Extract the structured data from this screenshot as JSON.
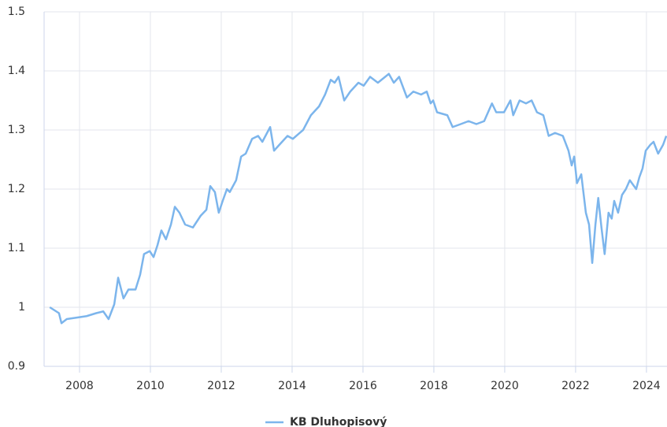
{
  "chart_data": {
    "type": "line",
    "series": [
      {
        "name": "KB Dluhopisový",
        "color": "#7cb5ec",
        "x": [
          2007.16,
          2007.42,
          2007.49,
          2007.64,
          2007.98,
          2008.2,
          2008.47,
          2008.67,
          2008.82,
          2008.98,
          2009.09,
          2009.24,
          2009.38,
          2009.58,
          2009.71,
          2009.82,
          2009.98,
          2010.09,
          2010.2,
          2010.31,
          2010.44,
          2010.58,
          2010.69,
          2010.82,
          2010.98,
          2011.2,
          2011.42,
          2011.58,
          2011.69,
          2011.82,
          2011.93,
          2012.04,
          2012.16,
          2012.24,
          2012.42,
          2012.56,
          2012.69,
          2012.87,
          2013.04,
          2013.16,
          2013.38,
          2013.49,
          2013.64,
          2013.87,
          2014.02,
          2014.31,
          2014.53,
          2014.76,
          2014.93,
          2015.09,
          2015.2,
          2015.31,
          2015.47,
          2015.64,
          2015.87,
          2016.02,
          2016.2,
          2016.42,
          2016.73,
          2016.87,
          2017.02,
          2017.24,
          2017.42,
          2017.64,
          2017.8,
          2017.91,
          2017.98,
          2018.09,
          2018.38,
          2018.53,
          2018.76,
          2018.98,
          2019.2,
          2019.42,
          2019.53,
          2019.64,
          2019.76,
          2019.98,
          2020.16,
          2020.24,
          2020.42,
          2020.6,
          2020.76,
          2020.91,
          2021.09,
          2021.24,
          2021.42,
          2021.64,
          2021.8,
          2021.89,
          2021.96,
          2022.04,
          2022.16,
          2022.29,
          2022.38,
          2022.47,
          2022.56,
          2022.64,
          2022.73,
          2022.82,
          2022.93,
          2023.02,
          2023.09,
          2023.2,
          2023.31,
          2023.42,
          2023.53,
          2023.71,
          2023.8,
          2023.89,
          2023.98,
          2024.11,
          2024.2,
          2024.33,
          2024.47,
          2024.56
        ],
        "values": [
          1.0,
          0.99,
          0.973,
          0.98,
          0.983,
          0.985,
          0.99,
          0.993,
          0.98,
          1.005,
          1.05,
          1.015,
          1.03,
          1.03,
          1.055,
          1.09,
          1.095,
          1.085,
          1.105,
          1.13,
          1.115,
          1.14,
          1.17,
          1.16,
          1.14,
          1.135,
          1.155,
          1.165,
          1.205,
          1.195,
          1.16,
          1.18,
          1.2,
          1.195,
          1.215,
          1.255,
          1.26,
          1.285,
          1.29,
          1.28,
          1.305,
          1.265,
          1.275,
          1.29,
          1.285,
          1.3,
          1.325,
          1.34,
          1.36,
          1.385,
          1.38,
          1.39,
          1.35,
          1.365,
          1.38,
          1.375,
          1.39,
          1.38,
          1.395,
          1.38,
          1.39,
          1.355,
          1.365,
          1.36,
          1.365,
          1.345,
          1.35,
          1.33,
          1.325,
          1.305,
          1.31,
          1.315,
          1.31,
          1.315,
          1.33,
          1.345,
          1.33,
          1.33,
          1.35,
          1.325,
          1.35,
          1.345,
          1.35,
          1.33,
          1.325,
          1.29,
          1.295,
          1.29,
          1.265,
          1.24,
          1.255,
          1.21,
          1.225,
          1.16,
          1.14,
          1.075,
          1.14,
          1.185,
          1.135,
          1.09,
          1.16,
          1.15,
          1.18,
          1.16,
          1.19,
          1.2,
          1.215,
          1.2,
          1.22,
          1.235,
          1.265,
          1.275,
          1.28,
          1.26,
          1.275,
          1.29
        ]
      }
    ],
    "xlim": [
      2007,
      2024.58
    ],
    "xticks": [
      2008,
      2010,
      2012,
      2014,
      2016,
      2018,
      2020,
      2022,
      2024
    ],
    "ylim": [
      0.9,
      1.5
    ],
    "yticks": [
      0.9,
      1,
      1.1,
      1.2,
      1.3,
      1.4,
      1.5
    ],
    "grid": true,
    "legend": "bottom"
  }
}
